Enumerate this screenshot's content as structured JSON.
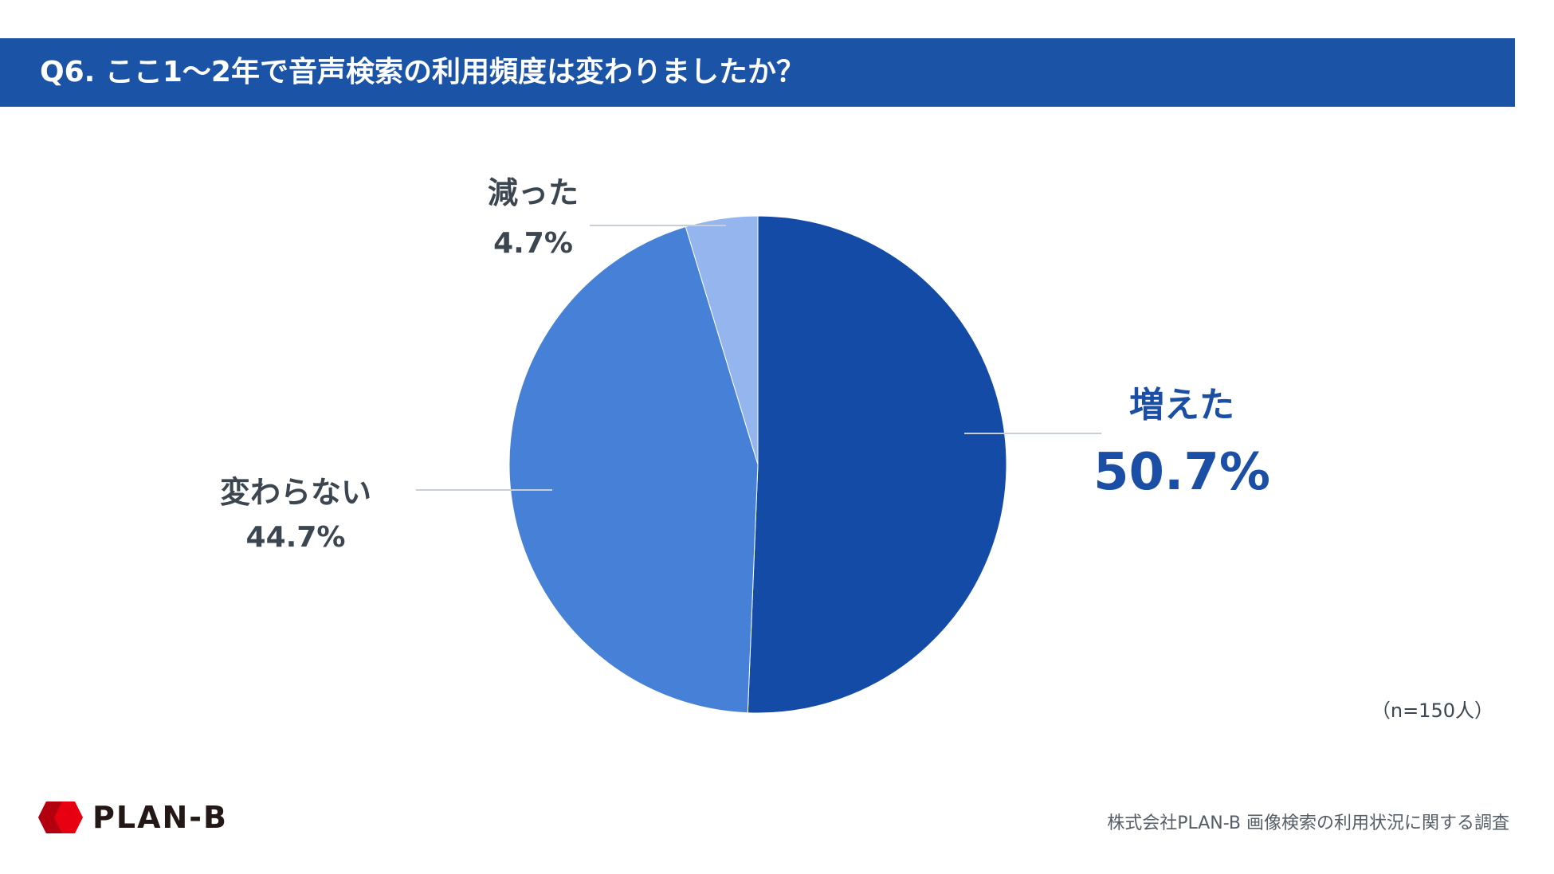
{
  "header": {
    "title": "Q6. ここ1〜2年で音声検索の利用頻度は変わりましたか？"
  },
  "chart_data": {
    "type": "pie",
    "title": "Q6. ここ1〜2年で音声検索の利用頻度は変わりましたか？",
    "slices": [
      {
        "label": "増えた",
        "value": 50.7,
        "display": "50.7%",
        "color": "#134ba6"
      },
      {
        "label": "変わらない",
        "value": 44.7,
        "display": "44.7%",
        "color": "#4680d7"
      },
      {
        "label": "減った",
        "value": 4.7,
        "display": "4.7%",
        "color": "#94b5ee"
      }
    ],
    "sample_size": "（n=150人）"
  },
  "footer": {
    "brand": "PLAN-B",
    "credit": "株式会社PLAN-B  画像検索の利用状況に関する調査"
  },
  "colors": {
    "header_bg": "#1b53a6",
    "brand_red": "#e60012",
    "label_text": "#3b4650",
    "highlight_text": "#1b4fa5"
  }
}
